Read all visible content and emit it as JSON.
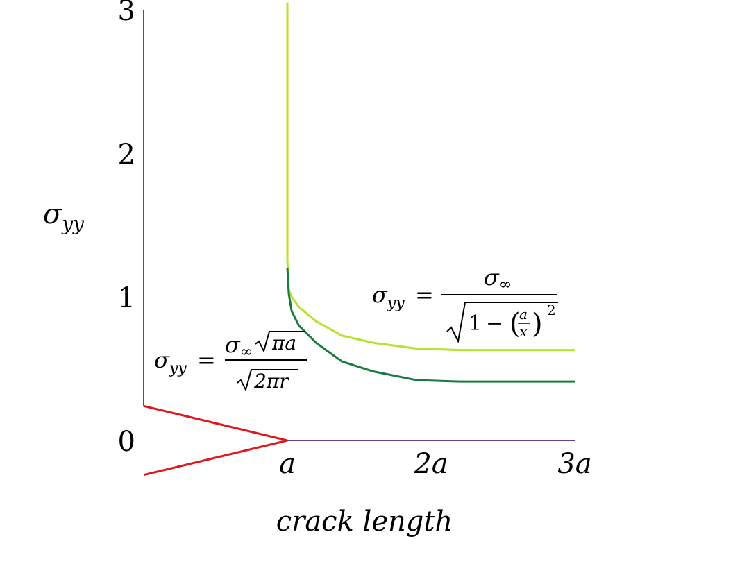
{
  "chart_data": {
    "type": "line",
    "title": "",
    "xlabel": "crack length",
    "ylabel_base": "σ",
    "ylabel_sub": "yy",
    "xlim": [
      0,
      3
    ],
    "ylim": [
      0,
      3
    ],
    "x_ticks": [
      {
        "value": 1,
        "label": "a"
      },
      {
        "value": 2,
        "label": "2a"
      },
      {
        "value": 3,
        "label": "3a"
      }
    ],
    "y_ticks": [
      {
        "value": 0,
        "label": "0"
      },
      {
        "value": 1,
        "label": "1"
      },
      {
        "value": 2,
        "label": "2"
      },
      {
        "value": 3,
        "label": "3"
      }
    ],
    "crack": {
      "tip": [
        1.0,
        0.0
      ],
      "upper": [
        0.0,
        0.24
      ],
      "lower": [
        0.0,
        -0.24
      ]
    },
    "axis_color": "#6a3d9a",
    "series": [
      {
        "color": "#b5e22a",
        "x": [
          1.0,
          1.0,
          1.01,
          1.03,
          1.08,
          1.2,
          1.38,
          1.6,
          1.9,
          2.2,
          2.6,
          3.0
        ],
        "y": [
          3.05,
          1.25,
          1.05,
          1.0,
          0.93,
          0.83,
          0.73,
          0.68,
          0.64,
          0.63,
          0.63,
          0.63
        ]
      },
      {
        "color": "#1b7a3f",
        "x": [
          1.0,
          1.01,
          1.03,
          1.08,
          1.2,
          1.38,
          1.6,
          1.9,
          2.2,
          2.6,
          3.0
        ],
        "y": [
          1.2,
          1.02,
          0.9,
          0.8,
          0.68,
          0.55,
          0.48,
          0.42,
          0.41,
          0.41,
          0.41
        ]
      }
    ],
    "annotations": {
      "far_field": {
        "lhs_base": "σ",
        "lhs_sub": "yy",
        "eq": "=",
        "num_base": "σ",
        "num_sub": "∞",
        "den_one": "1",
        "den_minus": "−",
        "frac_num": "a",
        "frac_den": "x",
        "exp": "2"
      },
      "near_tip": {
        "lhs_base": "σ",
        "lhs_sub": "yy",
        "eq": "=",
        "num_base": "σ",
        "num_sub": "∞",
        "num_root": "πa",
        "den_root": "2πr"
      }
    }
  }
}
